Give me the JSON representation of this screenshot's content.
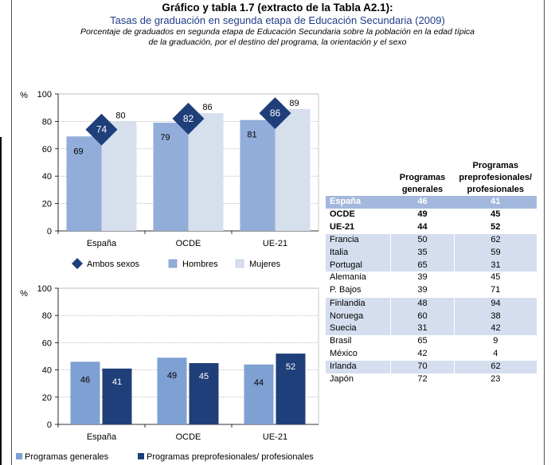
{
  "header": {
    "title": "Gráfico y tabla 1.7 (extracto de la Tabla A2.1):",
    "subtitle": "Tasas de graduación en segunda etapa de Educación Secundaria (2009)",
    "note_line1": "Porcentaje de graduados en segunda etapa de Educación Secundaria sobre la población en la edad típica",
    "note_line2": "de la graduación, por el destino del programa, la orientación y el sexo"
  },
  "colors": {
    "hombres": "#92add9",
    "mujeres": "#d6dfec",
    "ambos": "#1f3f7a",
    "generales": "#7fa0d2",
    "preprof": "#1f3f7a",
    "table_band": "#d5deee",
    "table_highlight": "#a4b8dd"
  },
  "chart_data": [
    {
      "type": "bar",
      "ylabel": "%",
      "ylim": [
        0,
        100
      ],
      "yticks": [
        0,
        20,
        40,
        60,
        80,
        100
      ],
      "categories": [
        "España",
        "OCDE",
        "UE-21"
      ],
      "series": [
        {
          "name": "Ambos sexos",
          "values": [
            74,
            82,
            86
          ],
          "marker": "diamond"
        },
        {
          "name": "Hombres",
          "values": [
            69,
            79,
            81
          ]
        },
        {
          "name": "Mujeres",
          "values": [
            80,
            86,
            89
          ]
        }
      ],
      "legend": "bottom"
    },
    {
      "type": "bar",
      "ylabel": "%",
      "ylim": [
        0,
        100
      ],
      "yticks": [
        0,
        20,
        40,
        60,
        80,
        100
      ],
      "categories": [
        "España",
        "OCDE",
        "UE-21"
      ],
      "series": [
        {
          "name": "Programas generales",
          "values": [
            46,
            49,
            44
          ]
        },
        {
          "name": "Programas preprofesionales/ profesionales",
          "values": [
            41,
            45,
            52
          ]
        }
      ],
      "legend": "bottom"
    },
    {
      "type": "table",
      "columns": [
        "",
        "Programas generales",
        "Programas preprofesionales/ profesionales"
      ],
      "rows": [
        [
          "España",
          "46",
          "41"
        ],
        [
          "OCDE",
          "49",
          "45"
        ],
        [
          "UE-21",
          "44",
          "52"
        ],
        [
          "Francia",
          "50",
          "62"
        ],
        [
          "Italia",
          "35",
          "59"
        ],
        [
          "Portugal",
          "65",
          "31"
        ],
        [
          "Alemania",
          "39",
          "45"
        ],
        [
          "P. Bajos",
          "39",
          "71"
        ],
        [
          "Finlandia",
          "48",
          "94"
        ],
        [
          "Noruega",
          "60",
          "38"
        ],
        [
          "Suecia",
          "31",
          "42"
        ],
        [
          "Brasil",
          "65",
          "9"
        ],
        [
          "México",
          "42",
          "4"
        ],
        [
          "Irlanda",
          "70",
          "62"
        ],
        [
          "Japón",
          "72",
          "23"
        ]
      ]
    }
  ]
}
